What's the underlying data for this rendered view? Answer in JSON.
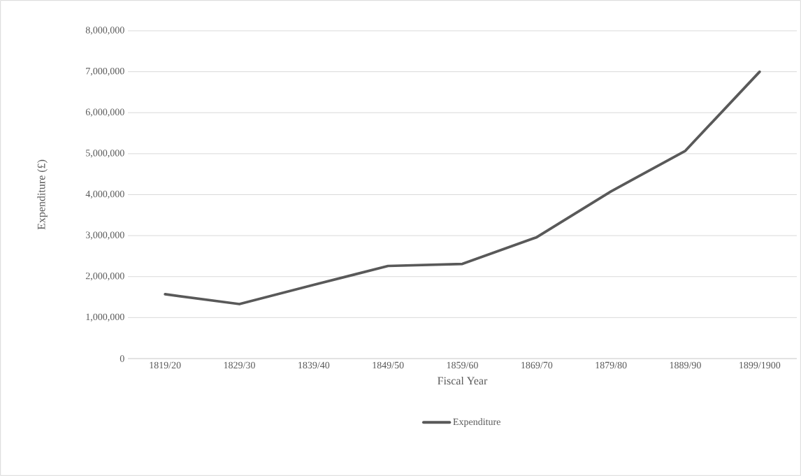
{
  "chart_data": {
    "type": "line",
    "xlabel": "Fiscal Year",
    "ylabel": "Expenditure (£)",
    "categories": [
      "1819/20",
      "1829/30",
      "1839/40",
      "1849/50",
      "1859/60",
      "1869/70",
      "1879/80",
      "1889/90",
      "1899/1900"
    ],
    "series": [
      {
        "name": "Expenditure",
        "color": "#595959",
        "values": [
          1570000,
          1330000,
          1800000,
          2260000,
          2310000,
          2960000,
          4080000,
          5070000,
          7000000
        ]
      }
    ],
    "ylim": [
      0,
      8000000
    ],
    "yticks": [
      {
        "value": 0,
        "label": "0"
      },
      {
        "value": 1000000,
        "label": "1,000,000"
      },
      {
        "value": 2000000,
        "label": "2,000,000"
      },
      {
        "value": 3000000,
        "label": "3,000,000"
      },
      {
        "value": 4000000,
        "label": "4,000,000"
      },
      {
        "value": 5000000,
        "label": "5,000,000"
      },
      {
        "value": 6000000,
        "label": "6,000,000"
      },
      {
        "value": 7000000,
        "label": "7,000,000"
      },
      {
        "value": 8000000,
        "label": "8,000,000"
      }
    ],
    "grid": "y",
    "legend": "bottom",
    "marker": "none",
    "line_style": "solid"
  }
}
